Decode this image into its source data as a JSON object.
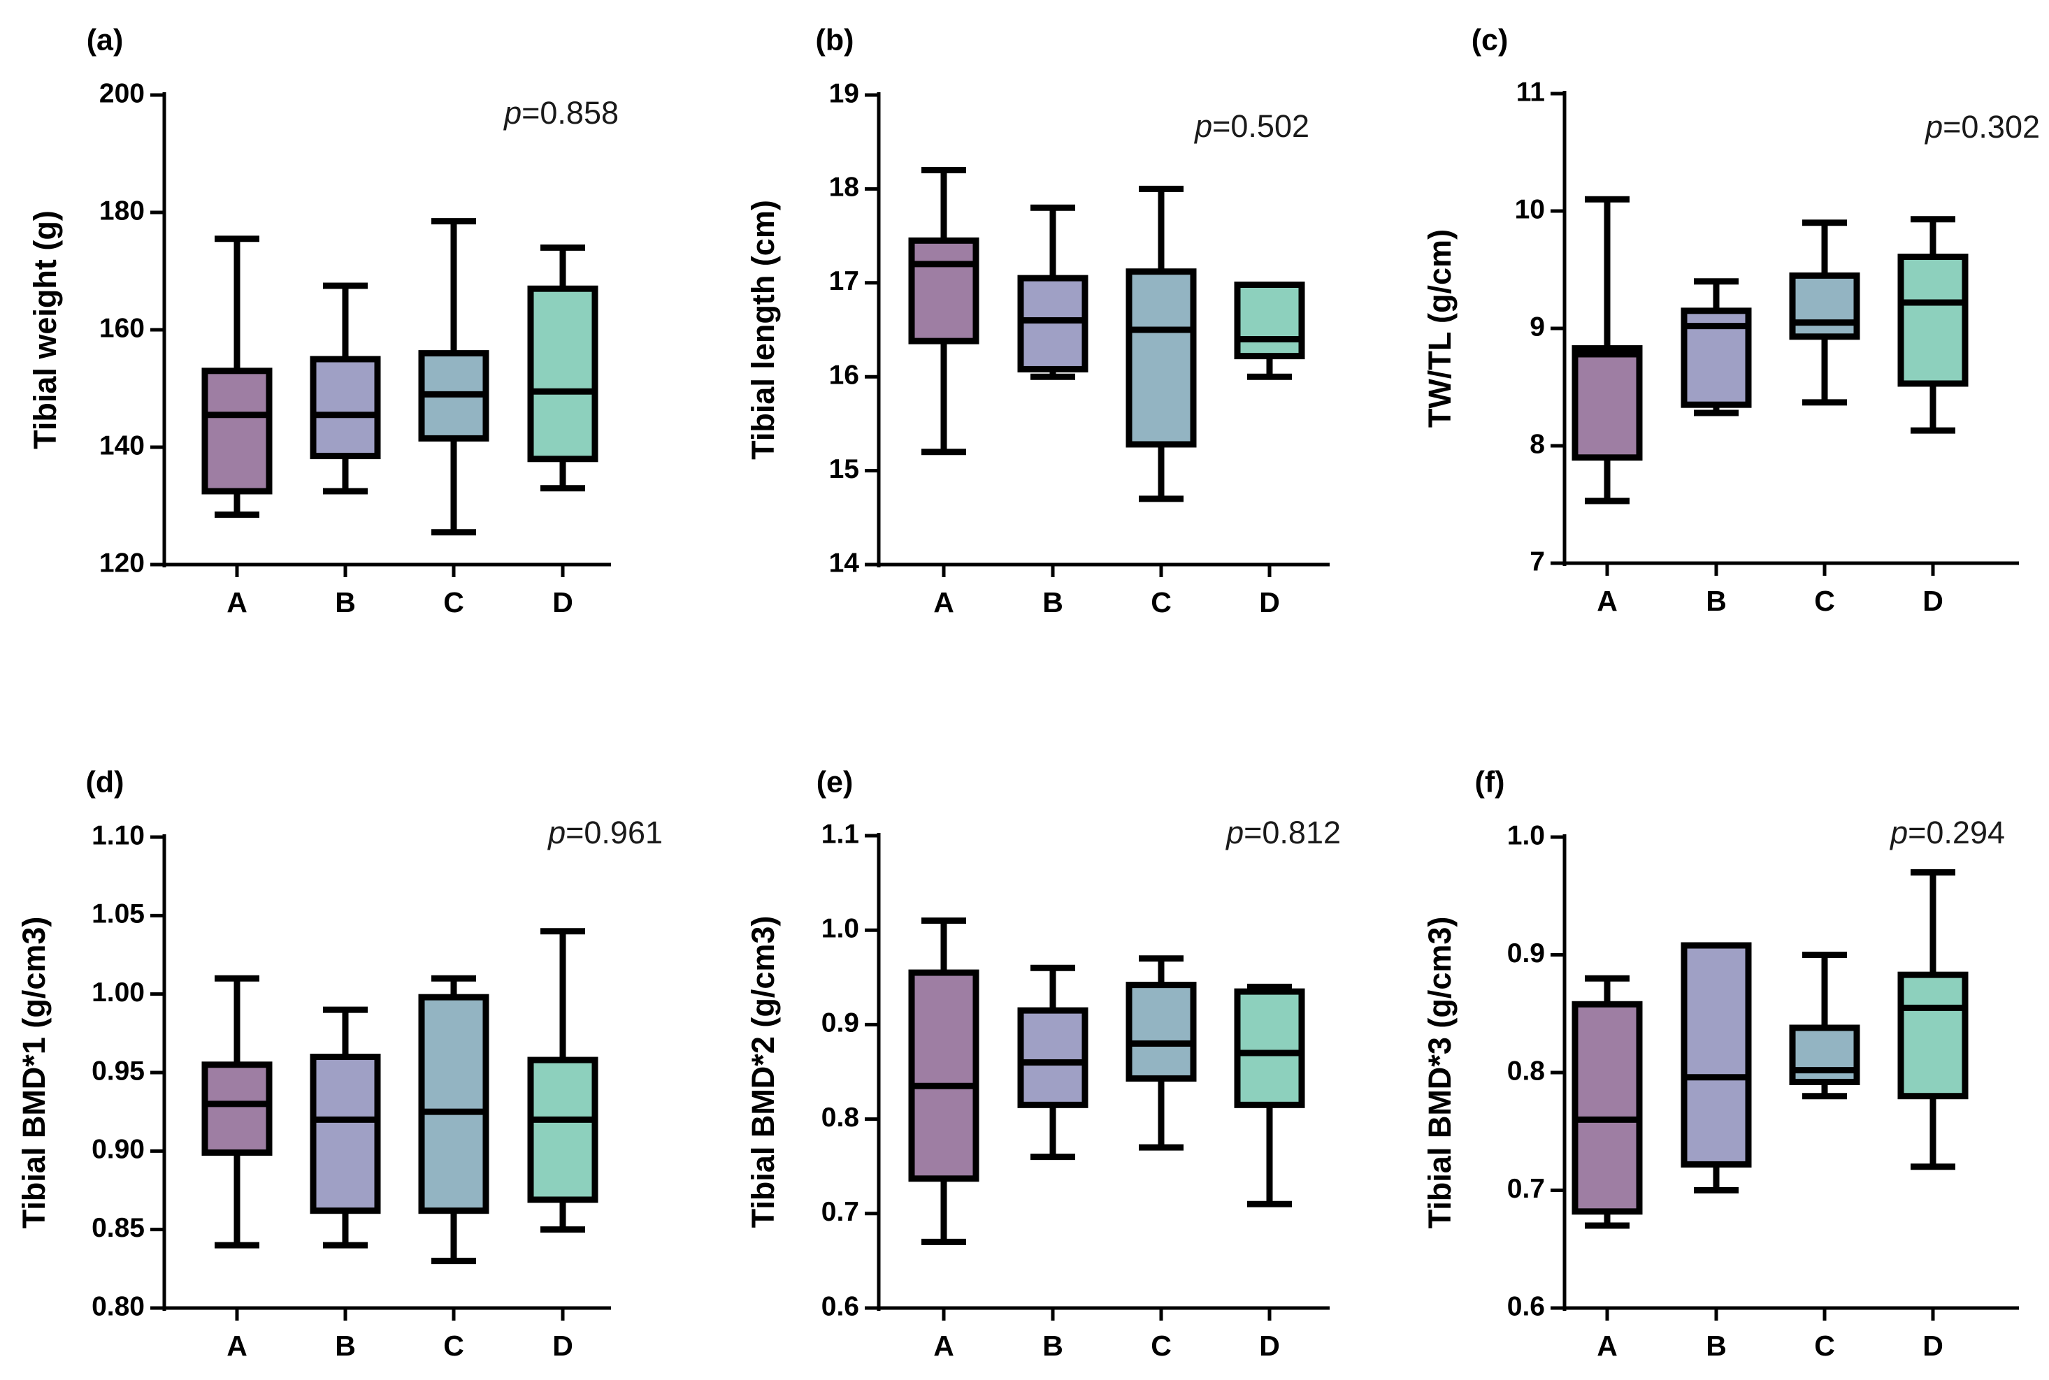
{
  "chart_data": [
    {
      "type": "box",
      "panel_label": "(a)",
      "ylabel": "Tibial weight (g)",
      "categories": [
        "A",
        "B",
        "C",
        "D"
      ],
      "ylim": [
        120,
        200
      ],
      "yticks": [
        "120",
        "140",
        "160",
        "180",
        "200"
      ],
      "p_prefix": "p",
      "p_value": "=0.858",
      "boxes": [
        {
          "min": 128.5,
          "q1": 132.5,
          "median": 145.5,
          "q3": 153,
          "max": 175.5
        },
        {
          "min": 132.5,
          "q1": 138.5,
          "median": 145.5,
          "q3": 155,
          "max": 167.5
        },
        {
          "min": 125.5,
          "q1": 141.5,
          "median": 149,
          "q3": 156,
          "max": 178.5
        },
        {
          "min": 133,
          "q1": 138,
          "median": 149.5,
          "q3": 167,
          "max": 174
        }
      ]
    },
    {
      "type": "box",
      "panel_label": "(b)",
      "ylabel": "Tibial length (cm)",
      "categories": [
        "A",
        "B",
        "C",
        "D"
      ],
      "ylim": [
        14,
        19
      ],
      "yticks": [
        "14",
        "15",
        "16",
        "17",
        "18",
        "19"
      ],
      "p_prefix": "p",
      "p_value": "=0.502",
      "boxes": [
        {
          "min": 15.2,
          "q1": 16.38,
          "median": 17.2,
          "q3": 17.45,
          "max": 18.2
        },
        {
          "min": 16.0,
          "q1": 16.08,
          "median": 16.6,
          "q3": 17.05,
          "max": 17.8
        },
        {
          "min": 14.7,
          "q1": 15.28,
          "median": 16.5,
          "q3": 17.12,
          "max": 18.0
        },
        {
          "min": 16.0,
          "q1": 16.22,
          "median": 16.4,
          "q3": 16.98,
          "max": 16.98
        }
      ]
    },
    {
      "type": "box",
      "panel_label": "(c)",
      "ylabel": "TW/TL (g/cm)",
      "categories": [
        "A",
        "B",
        "C",
        "D"
      ],
      "ylim": [
        7,
        11
      ],
      "yticks": [
        "7",
        "8",
        "9",
        "10",
        "11"
      ],
      "p_prefix": "p",
      "p_value": "=0.302",
      "boxes": [
        {
          "min": 7.53,
          "q1": 7.9,
          "median": 8.78,
          "q3": 8.83,
          "max": 10.1
        },
        {
          "min": 8.28,
          "q1": 8.35,
          "median": 9.02,
          "q3": 9.15,
          "max": 9.4
        },
        {
          "min": 8.37,
          "q1": 8.93,
          "median": 9.05,
          "q3": 9.45,
          "max": 9.9
        },
        {
          "min": 8.13,
          "q1": 8.53,
          "median": 9.22,
          "q3": 9.61,
          "max": 9.93
        }
      ]
    },
    {
      "type": "box",
      "panel_label": "(d)",
      "ylabel": "Tibial BMD*1 (g/cm3)",
      "categories": [
        "A",
        "B",
        "C",
        "D"
      ],
      "ylim": [
        0.8,
        1.1
      ],
      "yticks": [
        "0.80",
        "0.85",
        "0.90",
        "0.95",
        "1.00",
        "1.05",
        "1.10"
      ],
      "p_prefix": "p",
      "p_value": "=0.961",
      "boxes": [
        {
          "min": 0.84,
          "q1": 0.899,
          "median": 0.93,
          "q3": 0.955,
          "max": 1.01
        },
        {
          "min": 0.84,
          "q1": 0.862,
          "median": 0.92,
          "q3": 0.96,
          "max": 0.99
        },
        {
          "min": 0.83,
          "q1": 0.862,
          "median": 0.925,
          "q3": 0.998,
          "max": 1.01
        },
        {
          "min": 0.85,
          "q1": 0.869,
          "median": 0.92,
          "q3": 0.958,
          "max": 1.04
        }
      ]
    },
    {
      "type": "box",
      "panel_label": "(e)",
      "ylabel": "Tibial BMD*2 (g/cm3)",
      "categories": [
        "A",
        "B",
        "C",
        "D"
      ],
      "ylim": [
        0.6,
        1.1
      ],
      "yticks": [
        "0.6",
        "0.7",
        "0.8",
        "0.9",
        "1.0",
        "1.1"
      ],
      "p_prefix": "p",
      "p_value": "=0.812",
      "boxes": [
        {
          "min": 0.67,
          "q1": 0.737,
          "median": 0.835,
          "q3": 0.955,
          "max": 1.01
        },
        {
          "min": 0.76,
          "q1": 0.815,
          "median": 0.86,
          "q3": 0.915,
          "max": 0.96
        },
        {
          "min": 0.77,
          "q1": 0.843,
          "median": 0.88,
          "q3": 0.942,
          "max": 0.97
        },
        {
          "min": 0.71,
          "q1": 0.815,
          "median": 0.87,
          "q3": 0.935,
          "max": 0.94
        }
      ]
    },
    {
      "type": "box",
      "panel_label": "(f)",
      "ylabel": "Tibial BMD*3 (g/cm3)",
      "categories": [
        "A",
        "B",
        "C",
        "D"
      ],
      "ylim": [
        0.6,
        1.0
      ],
      "yticks": [
        "0.6",
        "0.7",
        "0.8",
        "0.9",
        "1.0"
      ],
      "p_prefix": "p",
      "p_value": "=0.294",
      "boxes": [
        {
          "min": 0.67,
          "q1": 0.682,
          "median": 0.76,
          "q3": 0.858,
          "max": 0.88
        },
        {
          "min": 0.7,
          "q1": 0.722,
          "median": 0.796,
          "q3": 0.908,
          "max": 0.908
        },
        {
          "min": 0.78,
          "q1": 0.792,
          "median": 0.802,
          "q3": 0.838,
          "max": 0.9
        },
        {
          "min": 0.72,
          "q1": 0.78,
          "median": 0.855,
          "q3": 0.883,
          "max": 0.97
        }
      ]
    }
  ],
  "colors": {
    "A": "#9e7ea3",
    "B": "#9fa0c5",
    "C": "#93b4c2",
    "D": "#8dd0bd",
    "stroke": "#000000"
  }
}
